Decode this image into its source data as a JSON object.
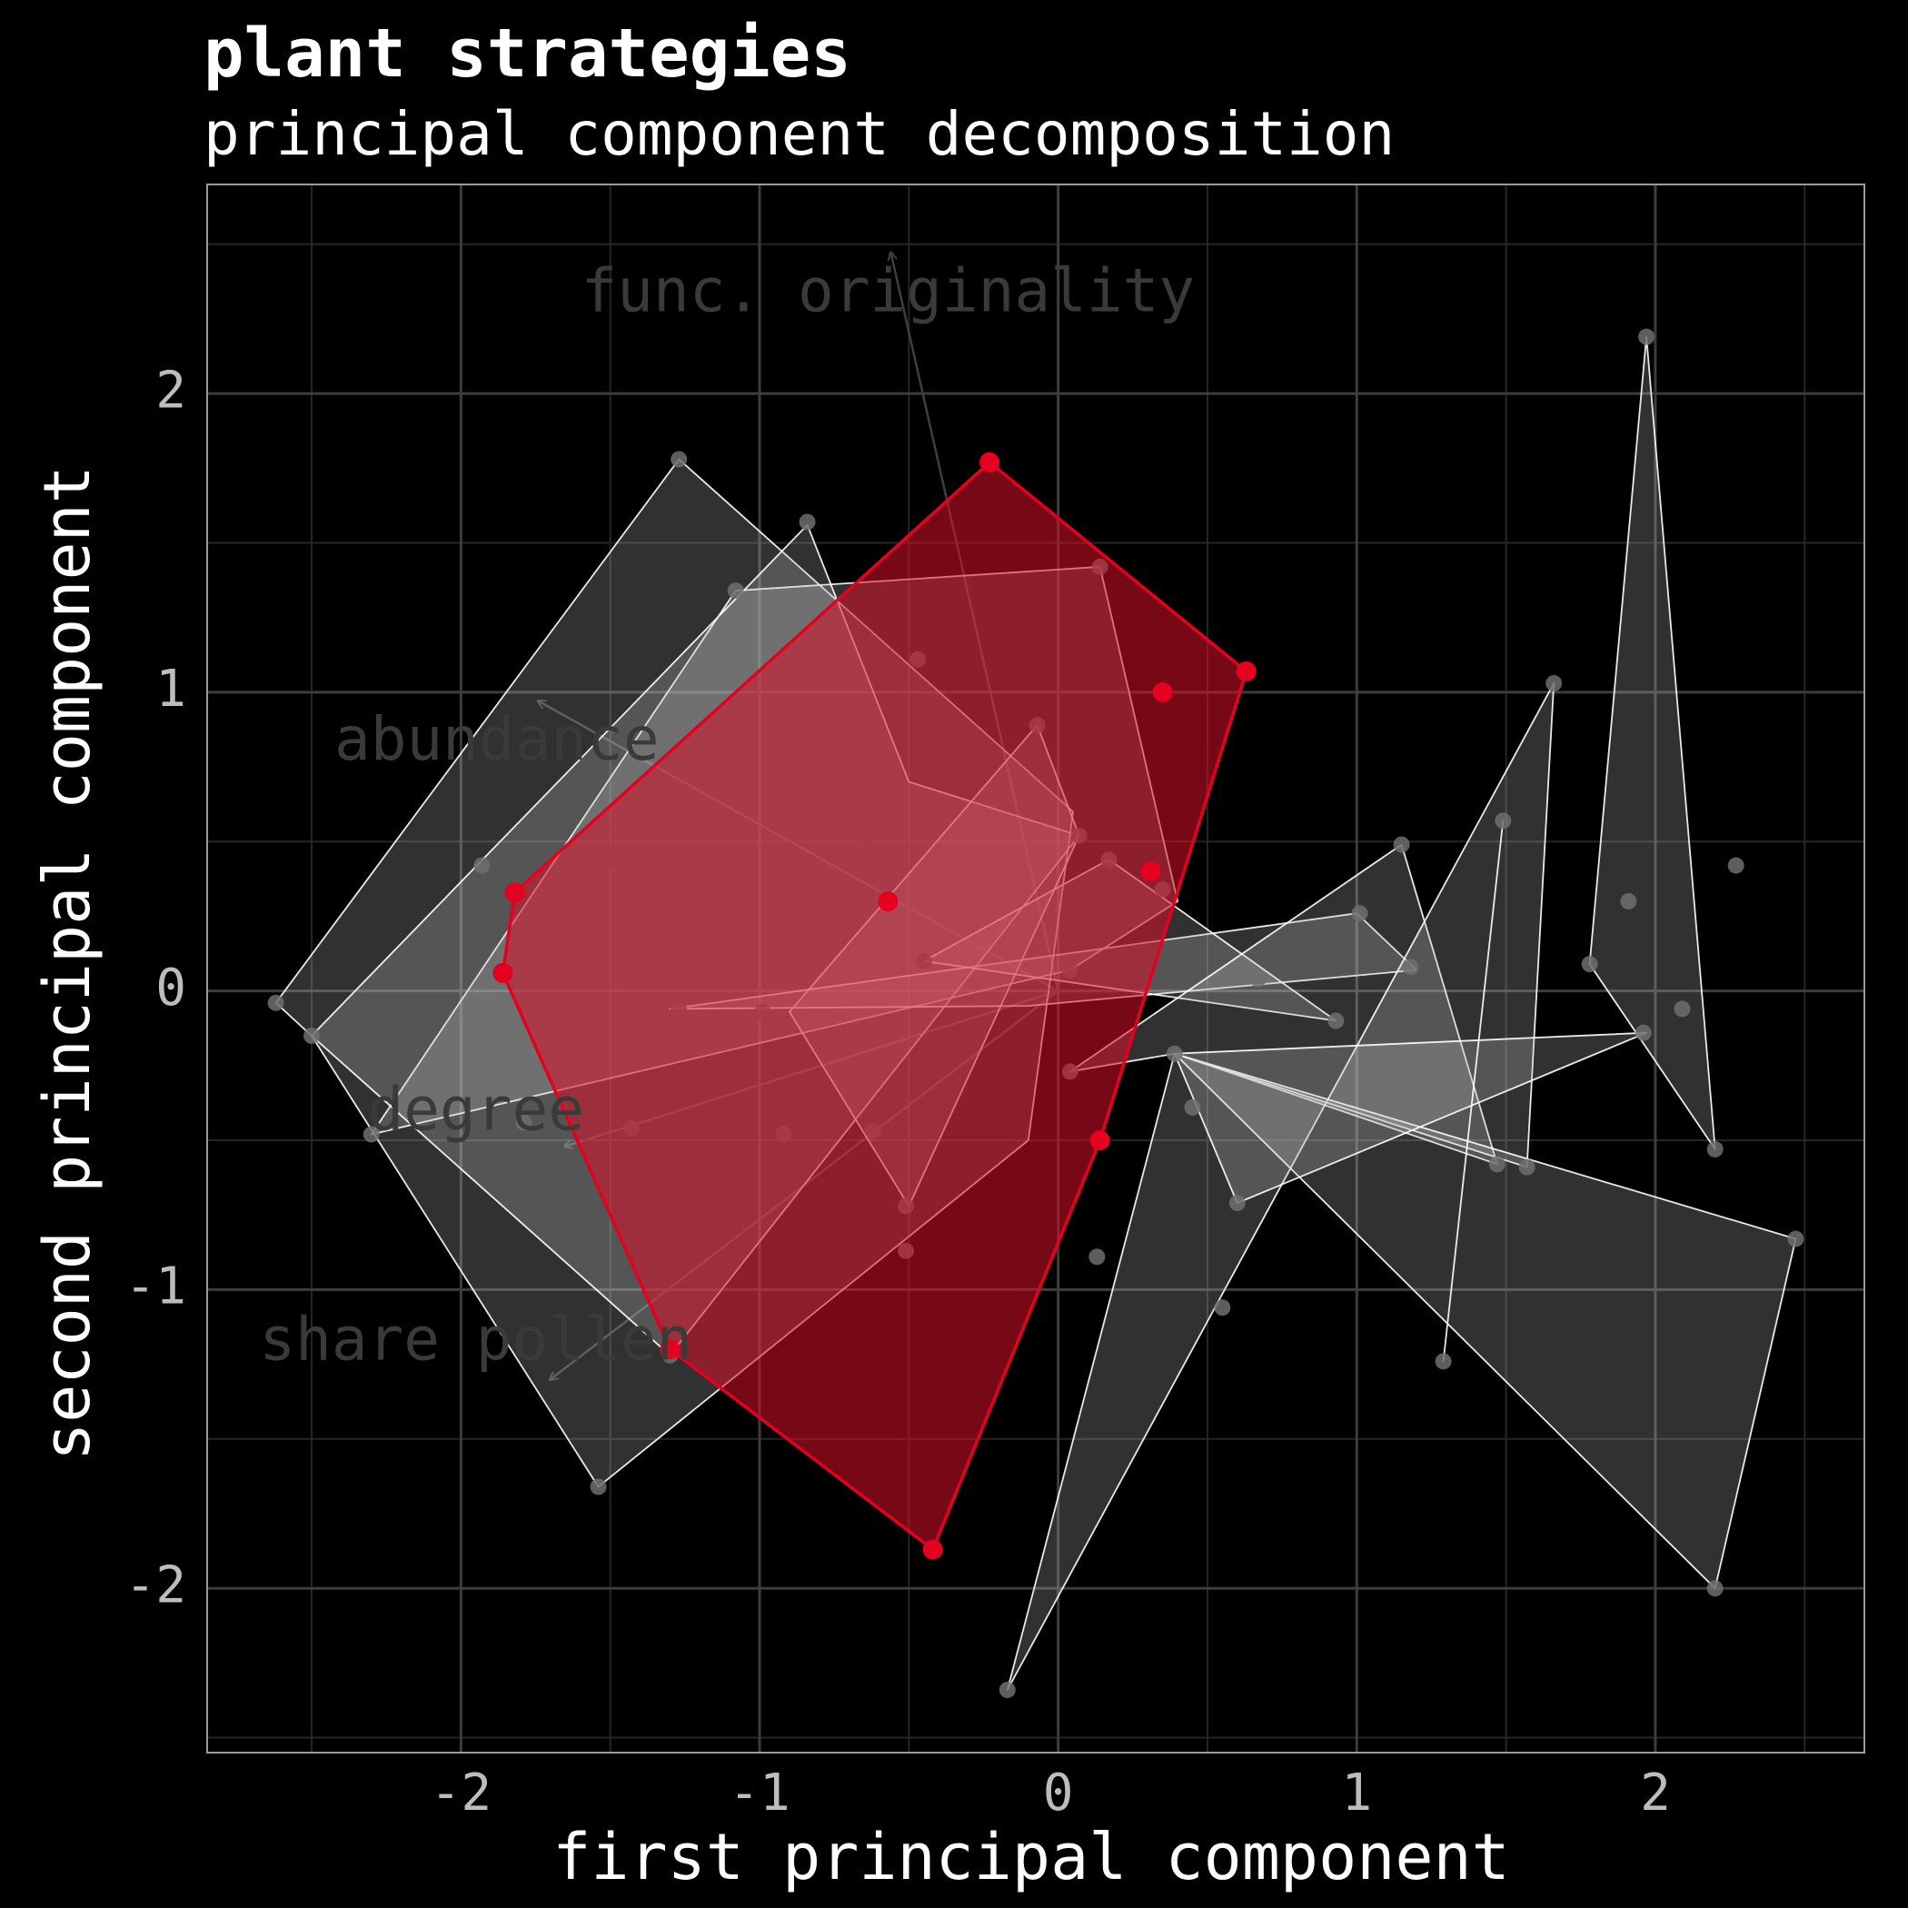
{
  "chart_data": {
    "type": "scatter",
    "title": "plant strategies",
    "subtitle": "principal component decomposition",
    "xlabel": "first principal component",
    "ylabel": "second principal component",
    "xlim": [
      -2.85,
      2.7
    ],
    "ylim": [
      -2.55,
      2.7
    ],
    "x_ticks": [
      -2,
      -1,
      0,
      1,
      2
    ],
    "y_ticks": [
      -2,
      -1,
      0,
      1,
      2
    ],
    "x_tick_labels": [
      "-2",
      "-1",
      "0",
      "1",
      "2"
    ],
    "y_tick_labels": [
      "-2",
      "-1",
      "0",
      "1",
      "2"
    ],
    "grid": true,
    "colors": {
      "background": "#000000",
      "grid_major": "#3d3d3d",
      "grid_minor": "#262626",
      "panel_border": "#9a9a9a",
      "highlight": "#e4001e",
      "highlight_fill": "#d8102a",
      "hull_fill": "#bfbfbf",
      "hull_line": "#ffffff",
      "loading_text": "#3a3a3a",
      "loading_arrow": "#3f3f3f",
      "points": "#6e6e6e"
    },
    "loadings": [
      {
        "label": "func. originality",
        "x": -0.56,
        "y": 2.47,
        "label_x": -0.57,
        "label_y": 2.33
      },
      {
        "label": "abundance",
        "x": -1.74,
        "y": 0.97,
        "label_x": -1.88,
        "label_y": 0.83
      },
      {
        "label": "degree",
        "x": -1.65,
        "y": -0.52,
        "label_x": -1.95,
        "label_y": -0.41
      },
      {
        "label": "share pollen",
        "x": -1.7,
        "y": -1.3,
        "label_x": -1.95,
        "label_y": -1.18
      }
    ],
    "highlight_points": [
      [
        -0.23,
        1.77
      ],
      [
        0.63,
        1.07
      ],
      [
        0.35,
        1.0
      ],
      [
        0.31,
        0.4
      ],
      [
        -0.57,
        0.3
      ],
      [
        -1.82,
        0.33
      ],
      [
        -1.86,
        0.06
      ],
      [
        0.14,
        -0.5
      ],
      [
        -1.3,
        -1.2
      ],
      [
        -0.42,
        -1.87
      ]
    ],
    "highlight_hull": [
      [
        -0.23,
        1.77
      ],
      [
        0.63,
        1.07
      ],
      [
        0.14,
        -0.5
      ],
      [
        -0.42,
        -1.87
      ],
      [
        -1.3,
        -1.2
      ],
      [
        -1.86,
        0.06
      ],
      [
        -1.82,
        0.33
      ]
    ],
    "background_hulls": [
      [
        [
          -1.27,
          1.78
        ],
        [
          0.05,
          0.6
        ],
        [
          -0.1,
          -0.5
        ],
        [
          -1.54,
          -1.66
        ],
        [
          -2.5,
          -0.15
        ],
        [
          -2.62,
          -0.04
        ]
      ],
      [
        [
          -1.08,
          1.34
        ],
        [
          0.14,
          1.42
        ],
        [
          0.4,
          0.3
        ],
        [
          0.04,
          0.07
        ],
        [
          -2.3,
          -0.48
        ]
      ],
      [
        [
          -0.84,
          1.56
        ],
        [
          -0.5,
          0.7
        ],
        [
          0.07,
          0.52
        ],
        [
          -1.3,
          -1.22
        ],
        [
          -2.5,
          -0.15
        ]
      ],
      [
        [
          -0.07,
          0.89
        ],
        [
          0.07,
          0.52
        ],
        [
          -0.5,
          -0.72
        ],
        [
          -0.9,
          -0.07
        ]
      ],
      [
        [
          -1.3,
          -0.06
        ],
        [
          1.0,
          0.26
        ],
        [
          1.2,
          0.07
        ],
        [
          -0.1,
          -0.05
        ]
      ],
      [
        [
          0.17,
          0.44
        ],
        [
          0.93,
          -0.1
        ],
        [
          -0.45,
          0.1
        ]
      ],
      [
        [
          1.15,
          0.49
        ],
        [
          1.47,
          -0.58
        ],
        [
          0.39,
          -0.21
        ],
        [
          0.04,
          -0.27
        ]
      ],
      [
        [
          0.39,
          -0.21
        ],
        [
          1.57,
          -0.59
        ],
        [
          1.66,
          1.03
        ],
        [
          -0.17,
          -2.34
        ]
      ],
      [
        [
          0.39,
          -0.21
        ],
        [
          2.47,
          -0.83
        ],
        [
          2.2,
          -2.0
        ]
      ],
      [
        [
          1.78,
          0.09
        ],
        [
          1.97,
          2.19
        ],
        [
          2.2,
          -0.53
        ]
      ],
      [
        [
          0.39,
          -0.21
        ],
        [
          1.97,
          -0.14
        ],
        [
          0.6,
          -0.71
        ]
      ],
      [
        [
          1.29,
          -1.24
        ],
        [
          1.49,
          0.57
        ]
      ]
    ],
    "background_points": [
      [
        -1.27,
        1.78
      ],
      [
        -0.84,
        1.57
      ],
      [
        -1.08,
        1.34
      ],
      [
        0.14,
        1.42
      ],
      [
        -0.47,
        1.11
      ],
      [
        -0.07,
        0.89
      ],
      [
        -0.91,
        0.79
      ],
      [
        -1.93,
        0.42
      ],
      [
        -1.5,
        0.44
      ],
      [
        -0.65,
        0.52
      ],
      [
        -0.58,
        0.45
      ],
      [
        0.07,
        0.52
      ],
      [
        0.17,
        0.44
      ],
      [
        0.35,
        0.34
      ],
      [
        -0.45,
        0.1
      ],
      [
        0.04,
        0.07
      ],
      [
        -1.08,
        0.06
      ],
      [
        -1.27,
        -0.06
      ],
      [
        -0.99,
        -0.07
      ],
      [
        -2.62,
        -0.04
      ],
      [
        -2.5,
        -0.15
      ],
      [
        -2.3,
        -0.48
      ],
      [
        -1.79,
        -0.44
      ],
      [
        -1.43,
        -0.46
      ],
      [
        -0.92,
        -0.48
      ],
      [
        -0.62,
        -0.47
      ],
      [
        -0.51,
        -0.72
      ],
      [
        -0.51,
        -0.87
      ],
      [
        0.04,
        -0.27
      ],
      [
        0.39,
        -0.21
      ],
      [
        0.45,
        -0.39
      ],
      [
        0.6,
        -0.71
      ],
      [
        0.67,
        0.04
      ],
      [
        1.01,
        0.26
      ],
      [
        0.93,
        -0.1
      ],
      [
        1.15,
        0.49
      ],
      [
        1.18,
        0.08
      ],
      [
        1.49,
        0.57
      ],
      [
        1.47,
        -0.58
      ],
      [
        1.57,
        -0.59
      ],
      [
        1.66,
        1.03
      ],
      [
        1.78,
        0.09
      ],
      [
        1.91,
        0.3
      ],
      [
        1.97,
        2.19
      ],
      [
        1.96,
        -0.14
      ],
      [
        2.09,
        -0.06
      ],
      [
        2.2,
        -0.53
      ],
      [
        2.27,
        0.42
      ],
      [
        2.47,
        -0.83
      ],
      [
        2.2,
        -2.0
      ],
      [
        1.29,
        -1.24
      ],
      [
        0.55,
        -1.06
      ],
      [
        0.13,
        -0.89
      ],
      [
        -0.17,
        -2.34
      ],
      [
        -1.54,
        -1.66
      ],
      [
        -1.3,
        -1.22
      ]
    ]
  }
}
